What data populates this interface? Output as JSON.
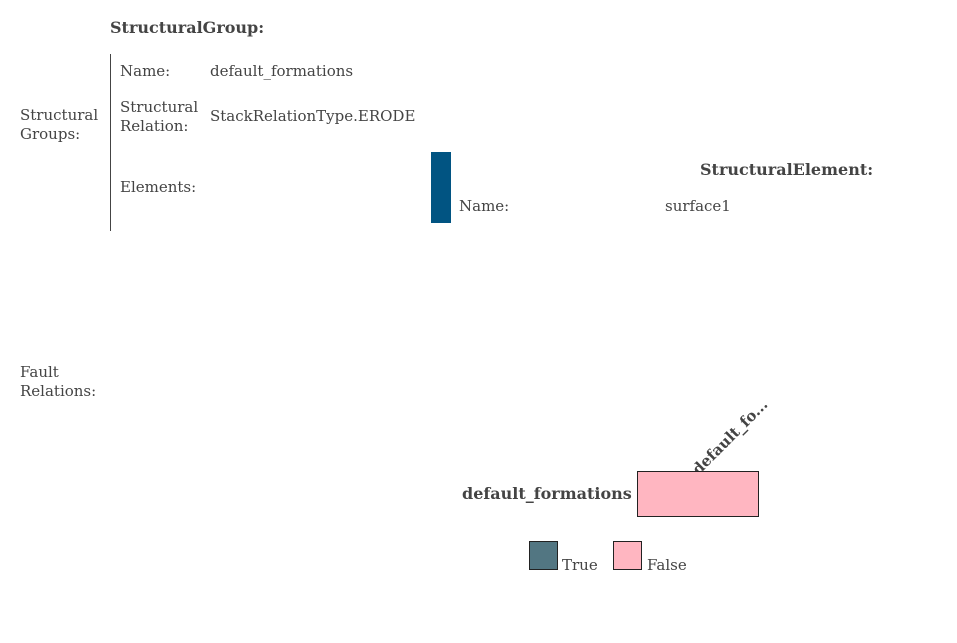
{
  "structural_group": {
    "heading": "StructuralGroup:",
    "section_label": "Structural Groups:",
    "name_label": "Name:",
    "name_value": "default_formations",
    "relation_label": "Structural Relation:",
    "relation_value": "StackRelationType.ERODE",
    "elements_label": "Elements:",
    "element": {
      "heading": "StructuralElement:",
      "name_label": "Name:",
      "name_value": "surface1",
      "color": "#015482"
    }
  },
  "fault_relations": {
    "section_label": "Fault Relations:",
    "row_label": "default_formations",
    "column_label": "default_fo...",
    "cell_value": false,
    "legend": {
      "true_label": "True",
      "false_label": "False",
      "true_color": "#527682",
      "false_color": "#FFB6C1"
    }
  }
}
